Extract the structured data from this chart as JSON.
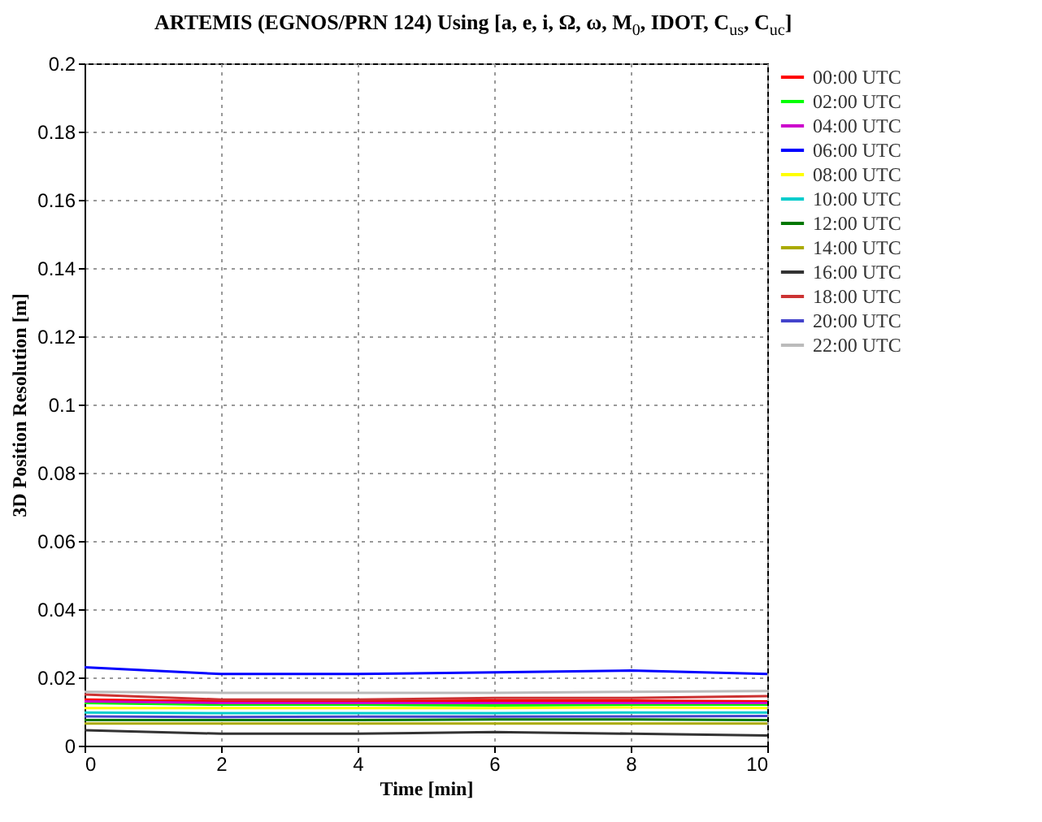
{
  "chart_data": {
    "type": "line",
    "title": "ARTEMIS (EGNOS/PRN 124) Using [a, e, i, Ω, ω, M$_{0}$, IDOT, C$_{us}$, C$_{uc}$]",
    "xlabel": "Time [min]",
    "ylabel": "3D Position Resolution [m]",
    "x": [
      0,
      2,
      4,
      6,
      8,
      10
    ],
    "series": [
      {
        "name": "00:00 UTC",
        "color": "#ff0000",
        "values": [
          0.0135,
          0.013,
          0.013,
          0.0132,
          0.0132,
          0.013
        ]
      },
      {
        "name": "02:00 UTC",
        "color": "#00ff00",
        "values": [
          0.0125,
          0.012,
          0.012,
          0.0118,
          0.012,
          0.012
        ]
      },
      {
        "name": "04:00 UTC",
        "color": "#cc00cc",
        "values": [
          0.013,
          0.0125,
          0.0125,
          0.0125,
          0.0125,
          0.0125
        ]
      },
      {
        "name": "06:00 UTC",
        "color": "#0000ff",
        "values": [
          0.023,
          0.021,
          0.021,
          0.0215,
          0.022,
          0.021
        ]
      },
      {
        "name": "08:00 UTC",
        "color": "#ffff00",
        "values": [
          0.011,
          0.011,
          0.011,
          0.011,
          0.0112,
          0.011
        ]
      },
      {
        "name": "10:00 UTC",
        "color": "#00cccc",
        "values": [
          0.0097,
          0.0095,
          0.0095,
          0.0095,
          0.0097,
          0.0097
        ]
      },
      {
        "name": "12:00 UTC",
        "color": "#007700",
        "values": [
          0.0075,
          0.0075,
          0.0075,
          0.0077,
          0.0077,
          0.0075
        ]
      },
      {
        "name": "14:00 UTC",
        "color": "#aaaa00",
        "values": [
          0.0065,
          0.0065,
          0.0065,
          0.0065,
          0.0065,
          0.0065
        ]
      },
      {
        "name": "16:00 UTC",
        "color": "#333333",
        "values": [
          0.0045,
          0.0035,
          0.0035,
          0.004,
          0.0035,
          0.003
        ]
      },
      {
        "name": "18:00 UTC",
        "color": "#cc3333",
        "values": [
          0.015,
          0.0135,
          0.0135,
          0.014,
          0.014,
          0.0145
        ]
      },
      {
        "name": "20:00 UTC",
        "color": "#4444cc",
        "values": [
          0.0086,
          0.0084,
          0.0085,
          0.0085,
          0.0086,
          0.0087
        ]
      },
      {
        "name": "22:00 UTC",
        "color": "#bbbbbb",
        "values": [
          0.0158,
          0.0155,
          0.0155,
          0.0155,
          0.0158,
          0.016
        ]
      }
    ],
    "xlim": [
      0,
      10
    ],
    "xticks": [
      0,
      2,
      4,
      6,
      8,
      10
    ],
    "ylim": [
      0,
      0.2
    ],
    "yticks": [
      0,
      0.02,
      0.04,
      0.06,
      0.08,
      0.1,
      0.12,
      0.14,
      0.16,
      0.18,
      0.2
    ],
    "grid": true,
    "legend": "right",
    "line_style": "solid",
    "marker": "none"
  }
}
